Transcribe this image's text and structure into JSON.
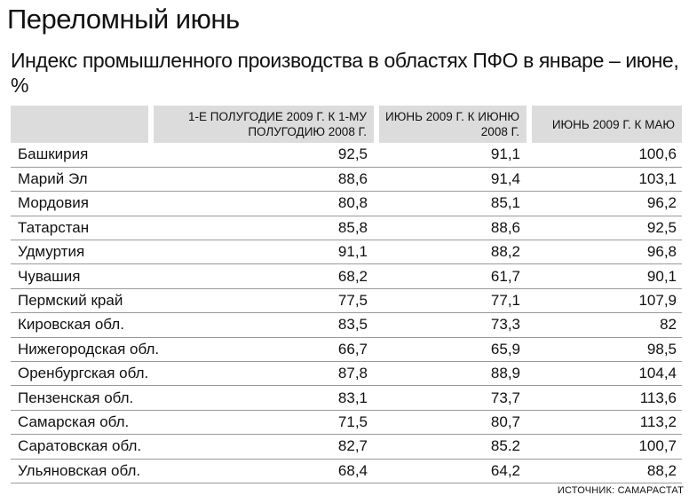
{
  "title": "Переломный июнь",
  "subtitle": "Индекс промышленного производства в областях ПФО в январе – июне, %",
  "table": {
    "headers": [
      "",
      "1-е полугодие 2009 г. к 1-му полугодию 2008 г.",
      "июнь 2009 г. к июню 2008 г.",
      "июнь 2009 г. к маю"
    ],
    "rows": [
      [
        "Башкирия",
        "92,5",
        "91,1",
        "100,6"
      ],
      [
        "Марий Эл",
        "88,6",
        "91,4",
        "103,1"
      ],
      [
        "Мордовия",
        "80,8",
        "85,1",
        "96,2"
      ],
      [
        "Татарстан",
        "85,8",
        "88,6",
        "92,5"
      ],
      [
        "Удмуртия",
        "91,1",
        "88,2",
        "96,8"
      ],
      [
        "Чувашия",
        "68,2",
        "61,7",
        "90,1"
      ],
      [
        "Пермский край",
        "77,5",
        "77,1",
        "107,9"
      ],
      [
        "Кировская обл.",
        "83,5",
        "73,3",
        "82"
      ],
      [
        "Нижегородская обл.",
        "66,7",
        "65,9",
        "98,5"
      ],
      [
        "Оренбургская обл.",
        "87,8",
        "88,9",
        "104,4"
      ],
      [
        "Пензенская обл.",
        "83,1",
        "73,7",
        "113,6"
      ],
      [
        "Самарская обл.",
        "71,5",
        "80,7",
        "113,2"
      ],
      [
        "Саратовская обл.",
        "82,7",
        "85.2",
        "100,7"
      ],
      [
        "Ульяновская обл.",
        "68,4",
        "64,2",
        "88,2"
      ]
    ]
  },
  "source": "Источник: Самарастат"
}
